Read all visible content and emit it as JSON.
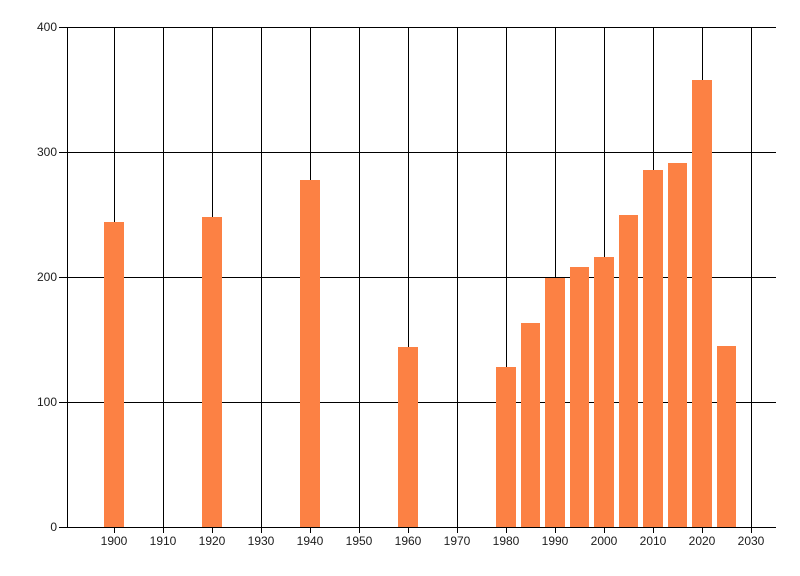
{
  "chart_data": {
    "type": "bar",
    "title": "",
    "xlabel": "",
    "ylabel": "",
    "x": [
      1900,
      1920,
      1940,
      1960,
      1980,
      1985,
      1990,
      1995,
      2000,
      2005,
      2010,
      2015,
      2020,
      2025
    ],
    "values": [
      244,
      248,
      278,
      144,
      128,
      163,
      199,
      208,
      216,
      250,
      286,
      291,
      358,
      145
    ],
    "bar_width_years": 4,
    "xlim": [
      1890.4,
      2035.1
    ],
    "ylim": [
      0,
      400
    ],
    "x_ticks": [
      1900,
      1910,
      1920,
      1930,
      1940,
      1950,
      1960,
      1970,
      1980,
      1990,
      2000,
      2010,
      2020,
      2030
    ],
    "y_ticks": [
      0,
      100,
      200,
      300,
      400
    ],
    "grid": "on",
    "legend": "none",
    "colors": {
      "bar": "#fc8144",
      "grid": "#000000",
      "axis": "#000000",
      "label": "#1c1c1c",
      "background": "#ffffff"
    }
  }
}
